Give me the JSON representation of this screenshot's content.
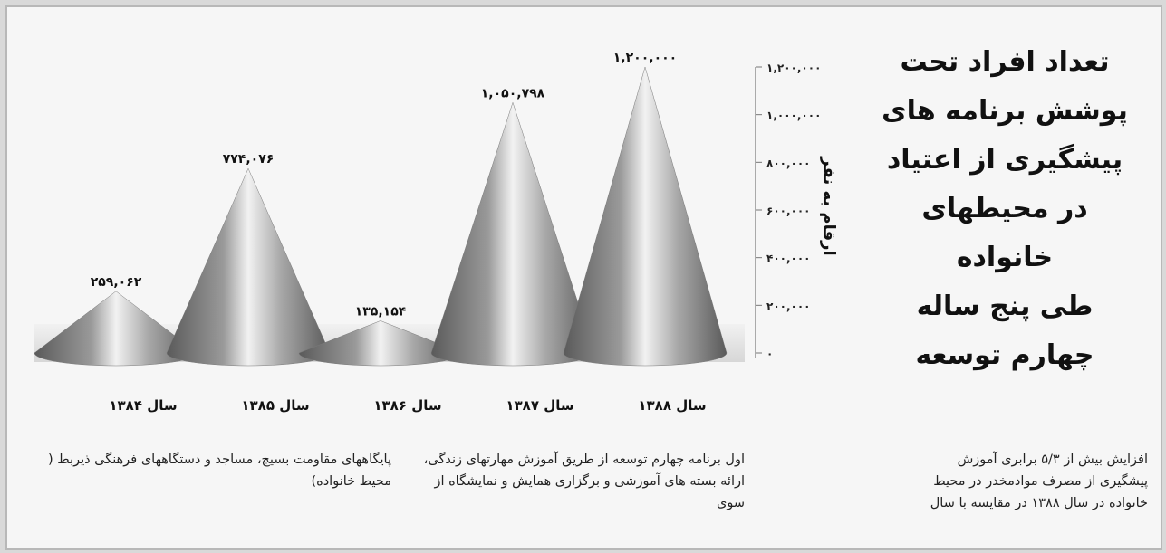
{
  "chart_data": {
    "type": "cone",
    "title": "تعداد افراد تحت پوشش برنامه های پیشگیری از اعتیاد در محیطهای خانواده طی پنج ساله چهارم توسعه",
    "title_lines": [
      "تعداد افراد تحت",
      "پوشش برنامه های",
      "پیشگیری از اعتیاد",
      "در محیطهای خانواده",
      "طی پنج ساله",
      "چهارم توسعه"
    ],
    "ylabel": "ارقام به نفر",
    "categories": [
      "سال ۱۳۸۴",
      "سال ۱۳۸۵",
      "سال ۱۳۸۶",
      "سال ۱۳۸۷",
      "سال ۱۳۸۸"
    ],
    "values": [
      259062,
      774076,
      135154,
      1050798,
      1200000
    ],
    "data_labels": [
      "۲۵۹,۰۶۲",
      "۷۷۴,۰۷۶",
      "۱۳۵,۱۵۴",
      "۱,۰۵۰,۷۹۸",
      "۱,۲۰۰,۰۰۰"
    ],
    "ylim": [
      0,
      1200000
    ],
    "yticks": [
      0,
      200000,
      400000,
      600000,
      800000,
      1000000,
      1200000
    ],
    "ytick_labels": [
      "۰",
      "۲۰۰,۰۰۰",
      "۴۰۰,۰۰۰",
      "۶۰۰,۰۰۰",
      "۸۰۰,۰۰۰",
      "۱,۰۰۰,۰۰۰",
      "۱,۲۰۰,۰۰۰"
    ],
    "grid": false,
    "legend": "none",
    "colors": {
      "cone_light": "#f2f2f2",
      "cone_dark": "#5a5a5a",
      "axis": "#777777"
    }
  },
  "text": {
    "para_right": "افزایش بیش از ۵/۳ برابری آموزش پیشگیری از مصرف موادمخدر در محیط خانواده در سال ۱۳۸۸ در مقایسه با سال",
    "para_middle": "اول برنامه چهارم توسعه از طریق آموزش مهارتهای زندگی، ارائه بسته های آموزشی و برگزاری همایش و نمایشگاه از سوی",
    "para_left": "پایگاههای مقاومت بسیج، مساجد و دستگاههای فرهنگی ذیربط ( محیط خانواده)"
  }
}
